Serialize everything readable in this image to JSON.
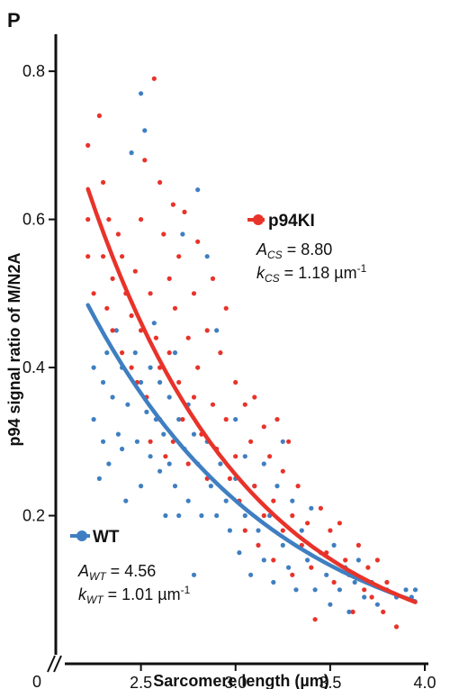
{
  "chart_data": {
    "type": "scatter",
    "panel_label": "P",
    "xlabel": "Sarcomere length (µm)",
    "ylabel": "p94 signal ratio of M/N2A",
    "xlim": [
      2.05,
      4.0
    ],
    "ylim": [
      0.0,
      0.85
    ],
    "x_ticks": [
      "2.5",
      "3.0",
      "3.5",
      "4.0"
    ],
    "y_ticks": [
      "0.2",
      "0.4",
      "0.6",
      "0.8"
    ],
    "origin_label": "0",
    "axis_break": true,
    "series": [
      {
        "name": "p94KI",
        "color": "#e8332a",
        "fit": {
          "A": 8.8,
          "k": 1.18,
          "x_range": [
            2.22,
            3.95
          ]
        },
        "annotation": {
          "var": "A",
          "sub": "CS",
          "value": "8.80",
          "kvar": "k",
          "kvalue": "1.18",
          "unit": "µm",
          "unit_exp": "-1"
        },
        "points": [
          [
            2.22,
            0.7
          ],
          [
            2.22,
            0.6
          ],
          [
            2.22,
            0.55
          ],
          [
            2.25,
            0.5
          ],
          [
            2.28,
            0.74
          ],
          [
            2.3,
            0.65
          ],
          [
            2.3,
            0.55
          ],
          [
            2.32,
            0.48
          ],
          [
            2.33,
            0.6
          ],
          [
            2.35,
            0.52
          ],
          [
            2.35,
            0.45
          ],
          [
            2.38,
            0.58
          ],
          [
            2.4,
            0.42
          ],
          [
            2.4,
            0.55
          ],
          [
            2.42,
            0.5
          ],
          [
            2.45,
            0.47
          ],
          [
            2.45,
            0.4
          ],
          [
            2.47,
            0.53
          ],
          [
            2.48,
            0.38
          ],
          [
            2.5,
            0.6
          ],
          [
            2.5,
            0.45
          ],
          [
            2.52,
            0.68
          ],
          [
            2.53,
            0.36
          ],
          [
            2.55,
            0.5
          ],
          [
            2.55,
            0.3
          ],
          [
            2.57,
            0.79
          ],
          [
            2.58,
            0.44
          ],
          [
            2.6,
            0.65
          ],
          [
            2.6,
            0.4
          ],
          [
            2.6,
            0.33
          ],
          [
            2.62,
            0.58
          ],
          [
            2.63,
            0.28
          ],
          [
            2.65,
            0.52
          ],
          [
            2.65,
            0.42
          ],
          [
            2.67,
            0.62
          ],
          [
            2.67,
            0.3
          ],
          [
            2.68,
            0.48
          ],
          [
            2.7,
            0.55
          ],
          [
            2.7,
            0.38
          ],
          [
            2.72,
            0.33
          ],
          [
            2.73,
            0.61
          ],
          [
            2.75,
            0.44
          ],
          [
            2.75,
            0.27
          ],
          [
            2.78,
            0.5
          ],
          [
            2.78,
            0.36
          ],
          [
            2.8,
            0.57
          ],
          [
            2.8,
            0.4
          ],
          [
            2.82,
            0.31
          ],
          [
            2.85,
            0.45
          ],
          [
            2.85,
            0.25
          ],
          [
            2.88,
            0.52
          ],
          [
            2.88,
            0.35
          ],
          [
            2.9,
            0.29
          ],
          [
            2.92,
            0.42
          ],
          [
            2.95,
            0.48
          ],
          [
            2.95,
            0.33
          ],
          [
            2.97,
            0.25
          ],
          [
            3.0,
            0.38
          ],
          [
            3.0,
            0.28
          ],
          [
            3.02,
            0.22
          ],
          [
            3.05,
            0.35
          ],
          [
            3.05,
            0.18
          ],
          [
            3.08,
            0.3
          ],
          [
            3.1,
            0.36
          ],
          [
            3.1,
            0.24
          ],
          [
            3.12,
            0.16
          ],
          [
            3.15,
            0.32
          ],
          [
            3.15,
            0.2
          ],
          [
            3.18,
            0.28
          ],
          [
            3.2,
            0.22
          ],
          [
            3.2,
            0.14
          ],
          [
            3.22,
            0.33
          ],
          [
            3.25,
            0.26
          ],
          [
            3.25,
            0.18
          ],
          [
            3.28,
            0.3
          ],
          [
            3.3,
            0.2
          ],
          [
            3.3,
            0.12
          ],
          [
            3.33,
            0.24
          ],
          [
            3.35,
            0.16
          ],
          [
            3.38,
            0.19
          ],
          [
            3.4,
            0.13
          ],
          [
            3.42,
            0.06
          ],
          [
            3.45,
            0.21
          ],
          [
            3.48,
            0.15
          ],
          [
            3.5,
            0.18
          ],
          [
            3.52,
            0.11
          ],
          [
            3.55,
            0.19
          ],
          [
            3.58,
            0.14
          ],
          [
            3.6,
            0.12
          ],
          [
            3.62,
            0.07
          ],
          [
            3.65,
            0.16
          ],
          [
            3.68,
            0.1
          ],
          [
            3.7,
            0.13
          ],
          [
            3.72,
            0.09
          ],
          [
            3.75,
            0.14
          ],
          [
            3.78,
            0.07
          ],
          [
            3.8,
            0.11
          ],
          [
            3.85,
            0.05
          ]
        ]
      },
      {
        "name": "WT",
        "color": "#3f7fc1",
        "fit": {
          "A": 4.56,
          "k": 1.01,
          "x_range": [
            2.22,
            3.95
          ]
        },
        "annotation": {
          "var": "A",
          "sub": "WT",
          "value": "4.56",
          "kvar": "k",
          "kvalue": "1.01",
          "unit": "µm",
          "unit_exp": "-1"
        },
        "points": [
          [
            2.25,
            0.4
          ],
          [
            2.25,
            0.33
          ],
          [
            2.28,
            0.25
          ],
          [
            2.3,
            0.38
          ],
          [
            2.3,
            0.3
          ],
          [
            2.32,
            0.42
          ],
          [
            2.33,
            0.27
          ],
          [
            2.35,
            0.36
          ],
          [
            2.37,
            0.45
          ],
          [
            2.38,
            0.31
          ],
          [
            2.4,
            0.4
          ],
          [
            2.4,
            0.29
          ],
          [
            2.42,
            0.22
          ],
          [
            2.43,
            0.35
          ],
          [
            2.45,
            0.69
          ],
          [
            2.47,
            0.42
          ],
          [
            2.48,
            0.3
          ],
          [
            2.5,
            0.77
          ],
          [
            2.5,
            0.38
          ],
          [
            2.5,
            0.24
          ],
          [
            2.52,
            0.72
          ],
          [
            2.53,
            0.34
          ],
          [
            2.55,
            0.4
          ],
          [
            2.55,
            0.28
          ],
          [
            2.57,
            0.46
          ],
          [
            2.58,
            0.33
          ],
          [
            2.6,
            0.38
          ],
          [
            2.6,
            0.26
          ],
          [
            2.62,
            0.31
          ],
          [
            2.63,
            0.2
          ],
          [
            2.65,
            0.36
          ],
          [
            2.65,
            0.27
          ],
          [
            2.68,
            0.42
          ],
          [
            2.68,
            0.24
          ],
          [
            2.7,
            0.33
          ],
          [
            2.7,
            0.2
          ],
          [
            2.72,
            0.58
          ],
          [
            2.73,
            0.29
          ],
          [
            2.75,
            0.35
          ],
          [
            2.75,
            0.22
          ],
          [
            2.78,
            0.31
          ],
          [
            2.78,
            0.12
          ],
          [
            2.8,
            0.64
          ],
          [
            2.8,
            0.27
          ],
          [
            2.82,
            0.2
          ],
          [
            2.85,
            0.55
          ],
          [
            2.85,
            0.3
          ],
          [
            2.87,
            0.24
          ],
          [
            2.9,
            0.45
          ],
          [
            2.9,
            0.2
          ],
          [
            2.92,
            0.27
          ],
          [
            2.95,
            0.22
          ],
          [
            2.97,
            0.18
          ],
          [
            3.0,
            0.33
          ],
          [
            3.0,
            0.25
          ],
          [
            3.02,
            0.15
          ],
          [
            3.05,
            0.28
          ],
          [
            3.05,
            0.2
          ],
          [
            3.08,
            0.12
          ],
          [
            3.1,
            0.24
          ],
          [
            3.12,
            0.18
          ],
          [
            3.15,
            0.27
          ],
          [
            3.15,
            0.14
          ],
          [
            3.18,
            0.2
          ],
          [
            3.2,
            0.11
          ],
          [
            3.22,
            0.24
          ],
          [
            3.25,
            0.16
          ],
          [
            3.25,
            0.3
          ],
          [
            3.28,
            0.13
          ],
          [
            3.3,
            0.22
          ],
          [
            3.32,
            0.1
          ],
          [
            3.35,
            0.18
          ],
          [
            3.38,
            0.14
          ],
          [
            3.4,
            0.21
          ],
          [
            3.42,
            0.1
          ],
          [
            3.45,
            0.15
          ],
          [
            3.48,
            0.12
          ],
          [
            3.5,
            0.08
          ],
          [
            3.52,
            0.16
          ],
          [
            3.55,
            0.1
          ],
          [
            3.58,
            0.13
          ],
          [
            3.6,
            0.07
          ],
          [
            3.63,
            0.11
          ],
          [
            3.65,
            0.14
          ],
          [
            3.68,
            0.09
          ],
          [
            3.72,
            0.11
          ],
          [
            3.75,
            0.08
          ],
          [
            3.8,
            0.1
          ],
          [
            3.85,
            0.09
          ],
          [
            3.9,
            0.1
          ],
          [
            3.93,
            0.09
          ],
          [
            3.95,
            0.1
          ]
        ]
      }
    ]
  }
}
